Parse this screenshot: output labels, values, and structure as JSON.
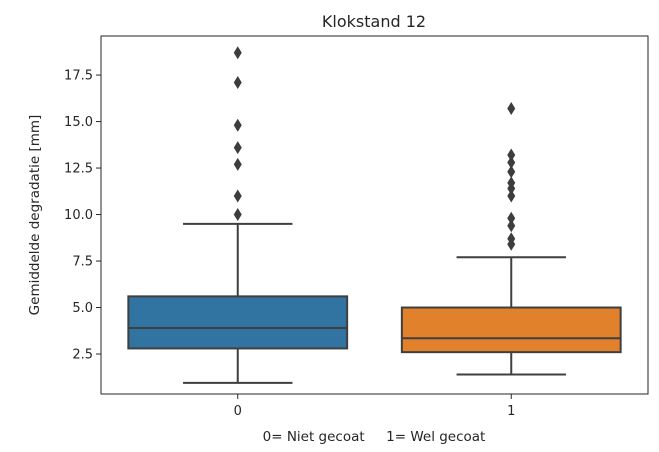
{
  "chart_data": {
    "type": "box",
    "title": "Klokstand 12",
    "xlabel": "0= Niet gecoat     1= Wel gecoat",
    "ylabel": "Gemiddelde degradatie [mm]",
    "ylim": [
      0.35,
      19.6
    ],
    "yticks": [
      2.5,
      5.0,
      7.5,
      10.0,
      12.5,
      15.0,
      17.5
    ],
    "ytick_labels": [
      "2.5",
      "5.0",
      "7.5",
      "10.0",
      "12.5",
      "15.0",
      "17.5"
    ],
    "categories": [
      "0",
      "1"
    ],
    "grid": false,
    "boxes": [
      {
        "category": "0",
        "color": "#3274a1",
        "whisker_low": 0.95,
        "q1": 2.8,
        "median": 3.9,
        "q3": 5.6,
        "whisker_high": 9.5,
        "outliers": [
          10.0,
          11.0,
          12.7,
          13.6,
          14.8,
          17.1,
          18.7
        ]
      },
      {
        "category": "1",
        "color": "#e1812c",
        "whisker_low": 1.4,
        "q1": 2.6,
        "median": 3.35,
        "q3": 5.0,
        "whisker_high": 7.7,
        "outliers": [
          8.4,
          8.7,
          9.4,
          9.8,
          11.0,
          11.4,
          11.7,
          12.3,
          12.8,
          13.2,
          15.7
        ]
      }
    ]
  }
}
